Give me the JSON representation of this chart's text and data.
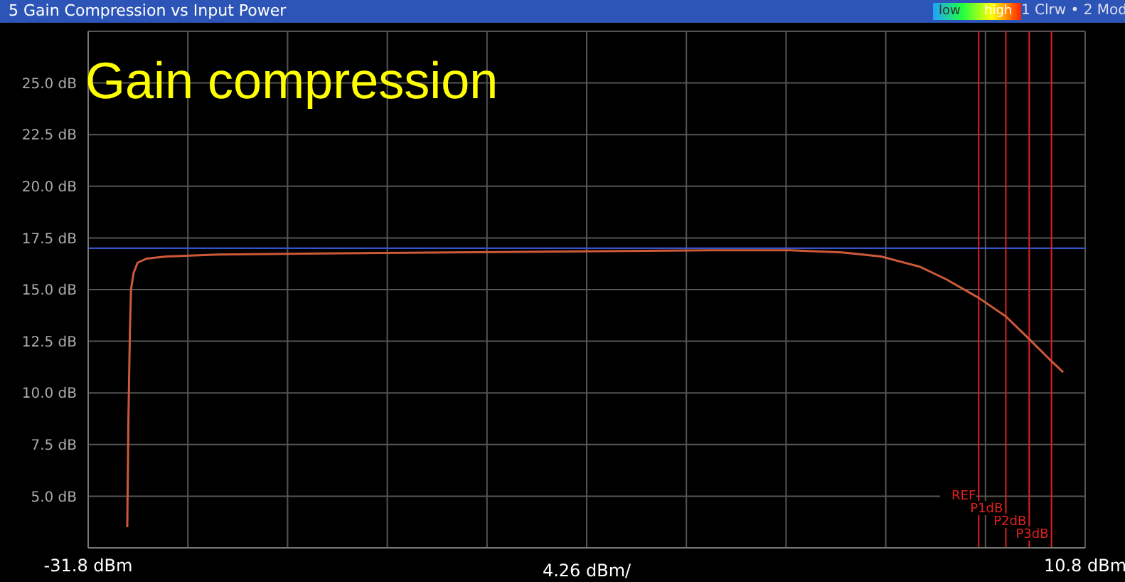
{
  "chart_data": {
    "type": "line",
    "title": "5 Gain Compression vs Input Power",
    "annotations": [
      "Gain compression",
      "low",
      "high",
      "1 Clrw • 2 Mod"
    ],
    "x": [
      -30.13,
      -30.08,
      -30.02,
      -29.97,
      -29.86,
      -29.69,
      -29.3,
      -28.47,
      -26.25,
      -21.8,
      -16.25,
      -10.7,
      -5.14,
      -1.81,
      0.41,
      2.08,
      3.75,
      4.86,
      6.25,
      7.41,
      8.41,
      9.3,
      9.86
    ],
    "values": [
      3.5,
      8.8,
      12.8,
      15.0,
      15.8,
      16.3,
      16.5,
      16.6,
      16.7,
      16.75,
      16.8,
      16.85,
      16.9,
      16.9,
      16.8,
      16.6,
      16.1,
      15.5,
      14.6,
      13.7,
      12.6,
      11.6,
      11.0
    ],
    "color": "#cc5a3a",
    "xlim": [
      -31.8,
      10.8
    ],
    "xticks": [
      {
        "value": -31.8,
        "label": "-31.8 dBm"
      },
      {
        "value": -27.54,
        "label": null
      },
      {
        "value": -23.28,
        "label": null
      },
      {
        "value": -19.02,
        "label": null
      },
      {
        "value": -14.76,
        "label": null
      },
      {
        "value": -10.5,
        "label": null
      },
      {
        "value": -6.24,
        "label": null
      },
      {
        "value": -1.98,
        "label": null
      },
      {
        "value": 2.28,
        "label": null
      },
      {
        "value": 6.54,
        "label": null
      },
      {
        "value": 10.8,
        "label": "10.8 dBm"
      }
    ],
    "xlabel": "4.26 dBm/",
    "ylim": [
      2.5,
      27.5
    ],
    "yticks": [
      {
        "value": 2.5,
        "label": null
      },
      {
        "value": 5,
        "label": "5.0 dB"
      },
      {
        "value": 7.5,
        "label": "7.5 dB"
      },
      {
        "value": 10,
        "label": "10.0 dB"
      },
      {
        "value": 12.5,
        "label": "12.5 dB"
      },
      {
        "value": 15,
        "label": "15.0 dB"
      },
      {
        "value": 17.5,
        "label": "17.5 dB"
      },
      {
        "value": 20,
        "label": "20.0 dB"
      },
      {
        "value": 22.5,
        "label": "22.5 dB"
      },
      {
        "value": 25,
        "label": "25.0 dB"
      },
      {
        "value": 27.5,
        "label": null
      }
    ],
    "ref_lines": [
      {
        "axis": "y",
        "value": 17.0,
        "color": "#3355cc"
      },
      {
        "axis": "x",
        "value": 6.25,
        "label": "REF",
        "color": "#e02020"
      },
      {
        "axis": "x",
        "value": 7.41,
        "label": "P1dB",
        "color": "#e02020"
      },
      {
        "axis": "x",
        "value": 8.41,
        "label": "P2dB",
        "color": "#e02020"
      },
      {
        "axis": "x",
        "value": 9.36,
        "label": "P3dB",
        "color": "#e02020"
      }
    ],
    "grid": true
  }
}
